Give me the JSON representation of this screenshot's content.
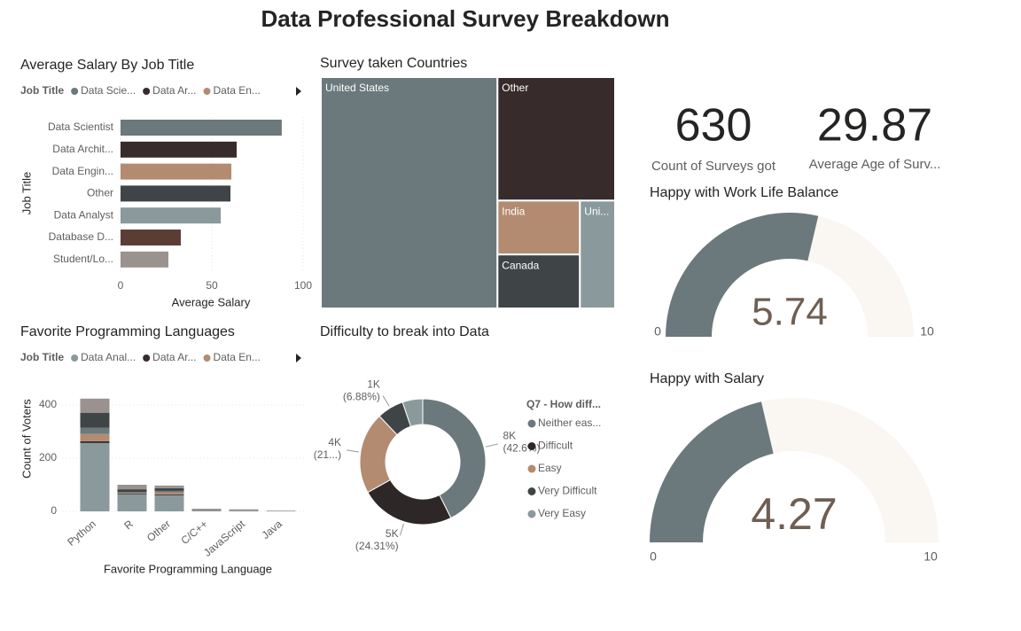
{
  "title": "Data Professional Survey Breakdown",
  "chart_data": [
    {
      "type": "hbar",
      "title": "Average Salary By Job Title",
      "legend_title": "Job Title",
      "legend_entries": [
        {
          "name": "Data Scie...",
          "color": "#6b797c"
        },
        {
          "name": "Data Ar...",
          "color": "#372b2b"
        },
        {
          "name": "Data En...",
          "color": "#b38b71"
        }
      ],
      "categories": [
        "Data Scientist",
        "Data Archit...",
        "Data Engin...",
        "Other",
        "Data Analyst",
        "Database D...",
        "Student/Lo..."
      ],
      "values": [
        88.3,
        63.6,
        60.7,
        60.2,
        54.9,
        33,
        26.2
      ],
      "colors": [
        "#6b797c",
        "#372b2b",
        "#b38b71",
        "#3f4547",
        "#8a9a9c",
        "#5c3d36",
        "#9a928e"
      ],
      "xlim": [
        0,
        100
      ],
      "xticks": [
        0,
        50,
        100
      ],
      "grid": true,
      "xlabel": "Average Salary",
      "ylabel": "Job Title"
    },
    {
      "type": "treemap",
      "title": "Survey taken Countries",
      "categories": [
        "United States",
        "Other",
        "India",
        "Canada",
        "Uni..."
      ],
      "values": [
        377,
        134,
        41,
        41,
        35
      ],
      "colors": [
        "#6b797c",
        "#372b2b",
        "#b38b71",
        "#3f4547",
        "#8a9a9c"
      ]
    },
    {
      "type": "stacked_bar",
      "title": "Favorite Programming Languages",
      "legend_title": "Job Title",
      "categories": [
        "Python",
        "R",
        "Other",
        "C/C++",
        "JavaScript",
        "Java"
      ],
      "series": [
        {
          "name": "Data Anal...",
          "color": "#8a9a9c",
          "values": [
            257,
            63,
            60,
            5,
            3,
            1
          ]
        },
        {
          "name": "Data Ar...",
          "color": "#372b2b",
          "values": [
            7,
            3,
            3,
            1,
            1,
            0
          ]
        },
        {
          "name": "Data En...",
          "color": "#b38b71",
          "values": [
            27,
            2,
            8,
            1,
            2,
            1
          ]
        },
        {
          "name": null,
          "color": "#6b797c",
          "values": [
            23,
            5,
            6,
            1,
            1,
            1
          ]
        },
        {
          "name": null,
          "color": "#3f4547",
          "values": [
            57,
            10,
            10,
            1,
            0,
            0
          ]
        },
        {
          "name": null,
          "color": "#9a928e",
          "values": [
            53,
            17,
            10,
            1,
            1,
            0
          ]
        }
      ],
      "ylim": [
        0,
        450
      ],
      "yticks": [
        0,
        200,
        400
      ],
      "grid": true,
      "xlabel": "Favorite Programming Language",
      "ylabel": "Count of Voters"
    },
    {
      "type": "donut",
      "title": "Difficulty to break into Data",
      "legend_title": "Q7 - How diff...",
      "categories": [
        "Neither eas...",
        "Difficult",
        "Easy",
        "Very Difficult",
        "Very Easy"
      ],
      "values": [
        8009,
        4570,
        3948,
        1293,
        980
      ],
      "value_labels": [
        [
          "8K",
          "(42.6%)"
        ],
        [
          "5K",
          "(24.31%)"
        ],
        [
          "4K",
          "(21...)"
        ],
        [
          "1K",
          "(6.88%)"
        ],
        null
      ],
      "colors": [
        "#6b797c",
        "#2e2727",
        "#b38b71",
        "#3f4547",
        "#8a9a9c"
      ]
    },
    {
      "type": "card",
      "value": 630,
      "label": "Count of Surveys got"
    },
    {
      "type": "card",
      "value": 29.87,
      "label": "Average Age of Surv..."
    },
    {
      "type": "gauge",
      "title": "Happy with Work Life Balance",
      "value": 5.74,
      "ylim": [
        0,
        10
      ],
      "color": "#6b797c",
      "background": "#faf6f1"
    },
    {
      "type": "gauge",
      "title": "Happy with Salary",
      "value": 4.27,
      "ylim": [
        0,
        10
      ],
      "color": "#6b797c",
      "background": "#faf6f1"
    }
  ]
}
